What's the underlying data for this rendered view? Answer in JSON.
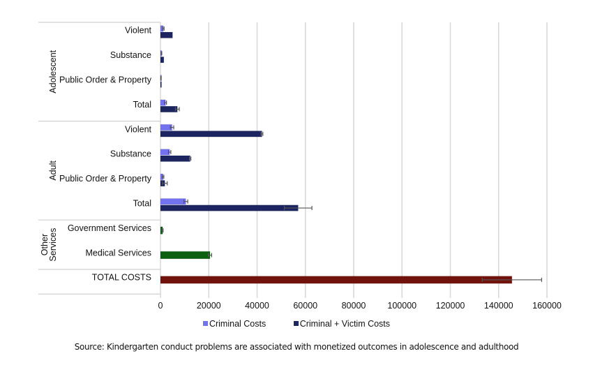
{
  "chart_data": {
    "type": "bar",
    "orientation": "horizontal",
    "title": "",
    "xlabel": "",
    "ylabel": "",
    "xlim": [
      0,
      160000
    ],
    "xticks": [
      0,
      20000,
      40000,
      60000,
      80000,
      100000,
      120000,
      140000,
      160000
    ],
    "xtick_labels": [
      "0",
      "20000",
      "40000",
      "60000",
      "80000",
      "100000",
      "120000",
      "140000",
      "160000"
    ],
    "grid": "vertical",
    "legend_position": "bottom",
    "legend": [
      {
        "name": "Criminal Costs",
        "color": "#7373f0"
      },
      {
        "name": "Criminal + Victim Costs",
        "color": "#1c2560"
      }
    ],
    "groups": [
      {
        "name": "Adolescent",
        "categories": [
          {
            "label": "Violent",
            "bars": [
              {
                "series": "Criminal Costs",
                "value": 1200,
                "error": 300,
                "color": "#7373f0"
              },
              {
                "series": "Criminal + Victim Costs",
                "value": 5000,
                "error": 0,
                "color": "#1c2560"
              }
            ]
          },
          {
            "label": "Substance",
            "bars": [
              {
                "series": "Criminal Costs",
                "value": 400,
                "error": 150,
                "color": "#7373f0"
              },
              {
                "series": "Criminal + Victim Costs",
                "value": 1400,
                "error": 0,
                "color": "#1c2560"
              }
            ]
          },
          {
            "label": "Public Order & Property",
            "bars": [
              {
                "series": "Criminal Costs",
                "value": 200,
                "error": 100,
                "color": "#7373f0"
              },
              {
                "series": "Criminal + Victim Costs",
                "value": 300,
                "error": 0,
                "color": "#1c2560"
              }
            ]
          },
          {
            "label": "Total",
            "bars": [
              {
                "series": "Criminal Costs",
                "value": 2100,
                "error": 400,
                "color": "#7373f0"
              },
              {
                "series": "Criminal + Victim Costs",
                "value": 7000,
                "error": 800,
                "color": "#1c2560"
              }
            ]
          }
        ]
      },
      {
        "name": "Adult",
        "categories": [
          {
            "label": "Violent",
            "bars": [
              {
                "series": "Criminal Costs",
                "value": 4800,
                "error": 700,
                "color": "#7373f0"
              },
              {
                "series": "Criminal + Victim Costs",
                "value": 42000,
                "error": 400,
                "color": "#1c2560"
              }
            ]
          },
          {
            "label": "Substance",
            "bars": [
              {
                "series": "Criminal Costs",
                "value": 3800,
                "error": 500,
                "color": "#7373f0"
              },
              {
                "series": "Criminal + Victim Costs",
                "value": 12300,
                "error": 300,
                "color": "#1c2560"
              }
            ]
          },
          {
            "label": "Public Order & Property",
            "bars": [
              {
                "series": "Criminal Costs",
                "value": 1100,
                "error": 300,
                "color": "#7373f0"
              },
              {
                "series": "Criminal + Victim Costs",
                "value": 1800,
                "error": 1000,
                "color": "#1c2560"
              }
            ]
          },
          {
            "label": "Total",
            "bars": [
              {
                "series": "Criminal Costs",
                "value": 10500,
                "error": 800,
                "color": "#7373f0"
              },
              {
                "series": "Criminal + Victim Costs",
                "value": 57000,
                "error": 5700,
                "color": "#1c2560"
              }
            ]
          }
        ]
      },
      {
        "name": "Other Services",
        "categories": [
          {
            "label": "Government Services",
            "bars": [
              {
                "series": "Government Services",
                "value": 900,
                "error": 200,
                "color": "#0b6110"
              }
            ]
          },
          {
            "label": "Medical Services",
            "bars": [
              {
                "series": "Medical Services",
                "value": 20500,
                "error": 700,
                "color": "#0b6110"
              }
            ]
          }
        ]
      },
      {
        "name": "",
        "categories": [
          {
            "label": "TOTAL COSTS",
            "bars": [
              {
                "series": "Total Costs",
                "value": 145500,
                "error": 12300,
                "color": "#72120c"
              }
            ]
          }
        ]
      }
    ],
    "annotations": []
  },
  "legend_labels": [
    "Criminal Costs",
    "Criminal + Victim Costs"
  ],
  "source_text": "Source: Kindergarten conduct problems are associated with monetized outcomes in adolescence and adulthood"
}
